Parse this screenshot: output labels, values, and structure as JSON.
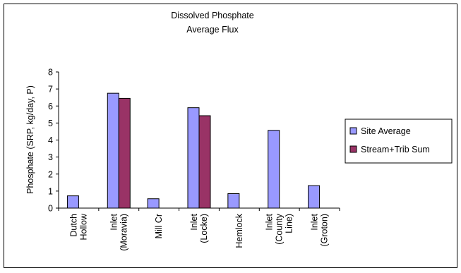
{
  "chart_data": {
    "type": "bar",
    "title_lines": [
      "Dissolved Phosphate",
      "Average Flux"
    ],
    "ylabel": "Phosphate (SRP, kg/day, P)",
    "xlabel": "",
    "ylim": [
      0,
      8
    ],
    "yticks": [
      0,
      1,
      2,
      3,
      4,
      5,
      6,
      7,
      8
    ],
    "categories": [
      [
        "Dutch",
        "Hollow"
      ],
      [
        "Inlet",
        "(Moravia)"
      ],
      [
        "Mill Cr"
      ],
      [
        "Inlet",
        "(Locke)"
      ],
      [
        "Hemlock"
      ],
      [
        "Inlet",
        "(County",
        "Line)"
      ],
      [
        "Inlet",
        "(Groton)"
      ]
    ],
    "series": [
      {
        "name": "Site Average",
        "color": "#9999ff",
        "values": [
          0.72,
          6.75,
          0.55,
          5.9,
          0.85,
          4.57,
          1.32
        ]
      },
      {
        "name": "Stream+Trib Sum",
        "color": "#993366",
        "values": [
          null,
          6.45,
          null,
          5.43,
          null,
          null,
          null
        ]
      }
    ],
    "legend": "right",
    "grid": false
  }
}
